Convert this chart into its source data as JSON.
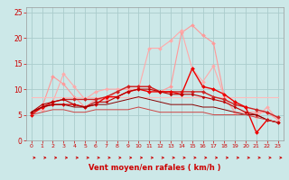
{
  "xlabel": "Vent moyen/en rafales ( km/h )",
  "background_color": "#cce8e8",
  "grid_color": "#aacccc",
  "xlim": [
    -0.5,
    23.5
  ],
  "ylim": [
    0,
    26
  ],
  "yticks": [
    0,
    5,
    10,
    15,
    20,
    25
  ],
  "xticks": [
    0,
    1,
    2,
    3,
    4,
    5,
    6,
    7,
    8,
    9,
    10,
    11,
    12,
    13,
    14,
    15,
    16,
    17,
    18,
    19,
    20,
    21,
    22,
    23
  ],
  "series": [
    {
      "x": [
        0,
        1,
        2,
        3,
        4,
        5,
        6,
        7,
        8,
        9,
        10,
        11,
        12,
        13,
        14,
        15,
        16,
        17,
        18,
        19,
        20,
        21,
        22,
        23
      ],
      "y": [
        5.5,
        6.5,
        12.5,
        11.0,
        8.5,
        6.5,
        8.0,
        8.0,
        9.5,
        10.5,
        10.5,
        10.5,
        9.5,
        10.5,
        21.0,
        22.5,
        20.5,
        19.0,
        8.5,
        5.5,
        5.5,
        5.5,
        5.5,
        4.0
      ],
      "color": "#ff9999",
      "marker": "D",
      "markersize": 2.0,
      "linewidth": 0.8
    },
    {
      "x": [
        0,
        1,
        2,
        3,
        4,
        5,
        6,
        7,
        8,
        9,
        10,
        11,
        12,
        13,
        14,
        15,
        16,
        17,
        18,
        19,
        20,
        21,
        22,
        23
      ],
      "y": [
        5.5,
        6.0,
        7.5,
        13.0,
        10.5,
        8.0,
        9.5,
        10.0,
        10.0,
        10.0,
        10.0,
        18.0,
        18.0,
        19.5,
        21.5,
        14.0,
        11.5,
        14.5,
        8.5,
        5.5,
        5.5,
        4.5,
        6.5,
        4.0
      ],
      "color": "#ffaaaa",
      "marker": "D",
      "markersize": 2.0,
      "linewidth": 0.8
    },
    {
      "x": [
        0,
        1,
        2,
        3,
        4,
        5,
        6,
        7,
        8,
        9,
        10,
        11,
        12,
        13,
        14,
        15,
        16,
        17,
        18,
        19,
        20,
        21,
        22,
        23
      ],
      "y": [
        8.5,
        8.5,
        8.5,
        8.5,
        8.5,
        8.5,
        8.5,
        8.5,
        8.5,
        8.5,
        8.5,
        8.5,
        8.5,
        8.5,
        8.5,
        8.5,
        8.5,
        8.5,
        8.5,
        8.5,
        8.5,
        8.5,
        8.5,
        8.5
      ],
      "color": "#ffbbbb",
      "marker": null,
      "markersize": 0,
      "linewidth": 0.8
    },
    {
      "x": [
        0,
        1,
        2,
        3,
        4,
        5,
        6,
        7,
        8,
        9,
        10,
        11,
        12,
        13,
        14,
        15,
        16,
        17,
        18,
        19,
        20,
        21,
        22,
        23
      ],
      "y": [
        5.5,
        6.5,
        7.5,
        8.0,
        8.0,
        8.0,
        8.0,
        8.5,
        9.5,
        10.5,
        10.5,
        10.5,
        9.5,
        9.5,
        9.5,
        9.5,
        9.5,
        8.5,
        8.0,
        7.0,
        6.5,
        6.0,
        5.5,
        4.5
      ],
      "color": "#cc2222",
      "marker": "D",
      "markersize": 2.0,
      "linewidth": 1.0
    },
    {
      "x": [
        0,
        1,
        2,
        3,
        4,
        5,
        6,
        7,
        8,
        9,
        10,
        11,
        12,
        13,
        14,
        15,
        16,
        17,
        18,
        19,
        20,
        21,
        22,
        23
      ],
      "y": [
        5.0,
        6.5,
        7.0,
        7.0,
        7.0,
        6.5,
        7.0,
        8.5,
        8.5,
        9.5,
        10.0,
        9.5,
        9.5,
        9.5,
        9.0,
        14.0,
        10.5,
        10.0,
        9.0,
        7.5,
        6.5,
        1.5,
        4.0,
        3.5
      ],
      "color": "#ee0000",
      "marker": "D",
      "markersize": 2.0,
      "linewidth": 1.0
    },
    {
      "x": [
        0,
        1,
        2,
        3,
        4,
        5,
        6,
        7,
        8,
        9,
        10,
        11,
        12,
        13,
        14,
        15,
        16,
        17,
        18,
        19,
        20,
        21,
        22,
        23
      ],
      "y": [
        5.5,
        7.0,
        7.5,
        8.0,
        7.0,
        6.5,
        7.5,
        7.5,
        8.5,
        9.5,
        10.0,
        10.0,
        9.5,
        9.0,
        9.0,
        9.0,
        8.5,
        8.0,
        7.5,
        6.5,
        5.5,
        5.0,
        4.0,
        3.5
      ],
      "color": "#bb0000",
      "marker": "D",
      "markersize": 1.5,
      "linewidth": 0.8
    },
    {
      "x": [
        0,
        1,
        2,
        3,
        4,
        5,
        6,
        7,
        8,
        9,
        10,
        11,
        12,
        13,
        14,
        15,
        16,
        17,
        18,
        19,
        20,
        21,
        22,
        23
      ],
      "y": [
        5.5,
        6.5,
        7.0,
        7.0,
        6.5,
        6.5,
        7.0,
        7.0,
        7.5,
        8.0,
        8.5,
        8.0,
        7.5,
        7.0,
        7.0,
        7.0,
        6.5,
        6.5,
        6.0,
        5.5,
        5.0,
        5.0,
        4.0,
        3.5
      ],
      "color": "#880000",
      "marker": null,
      "markersize": 0,
      "linewidth": 0.7
    },
    {
      "x": [
        0,
        1,
        2,
        3,
        4,
        5,
        6,
        7,
        8,
        9,
        10,
        11,
        12,
        13,
        14,
        15,
        16,
        17,
        18,
        19,
        20,
        21,
        22,
        23
      ],
      "y": [
        5.0,
        5.5,
        6.0,
        6.0,
        5.5,
        5.5,
        6.0,
        6.0,
        6.0,
        6.0,
        6.5,
        6.0,
        5.5,
        5.5,
        5.5,
        5.5,
        5.5,
        5.0,
        5.0,
        5.0,
        5.0,
        4.5,
        4.0,
        3.5
      ],
      "color": "#cc4444",
      "marker": null,
      "markersize": 0,
      "linewidth": 0.7
    }
  ],
  "arrow_color": "#cc0000"
}
